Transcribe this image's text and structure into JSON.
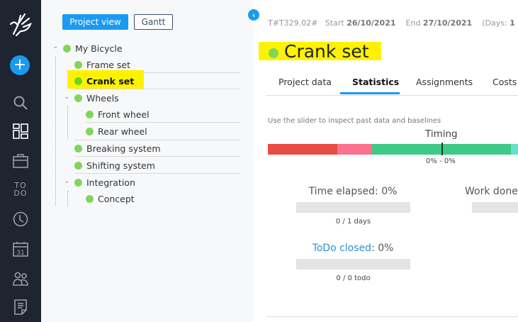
{
  "sidebar": {
    "items": [
      {
        "icon": "logo-hand-icon"
      },
      {
        "icon": "add-icon",
        "color": "#1a9af0"
      },
      {
        "icon": "search-icon"
      },
      {
        "icon": "dashboard-icon"
      },
      {
        "icon": "briefcase-icon"
      },
      {
        "icon": "todo-icon",
        "label_top": "TO",
        "label_bottom": "DO"
      },
      {
        "icon": "clock-icon"
      },
      {
        "icon": "calendar-icon",
        "label": "31"
      },
      {
        "icon": "people-icon"
      },
      {
        "icon": "document-icon"
      }
    ]
  },
  "left": {
    "project_view_label": "Project view",
    "gantt_label": "Gantt",
    "tree": [
      {
        "label": "My Bicycle",
        "level": 0,
        "expanded": true
      },
      {
        "label": "Frame set",
        "level": 1
      },
      {
        "label": "Crank set",
        "level": 1,
        "selected": true
      },
      {
        "label": "Wheels",
        "level": 1,
        "expanded": true
      },
      {
        "label": "Front wheel",
        "level": 2
      },
      {
        "label": "Rear wheel",
        "level": 2
      },
      {
        "label": "Breaking system",
        "level": 1
      },
      {
        "label": "Shifting system",
        "level": 1
      },
      {
        "label": "Integration",
        "level": 1,
        "expanded": true
      },
      {
        "label": "Concept",
        "level": 2
      }
    ]
  },
  "header": {
    "code": "T#T329.02#",
    "start_label": "Start",
    "start": "26/10/2021",
    "end_label": "End",
    "end": "27/10/2021",
    "days_prefix": "(Days:",
    "days": "1",
    "days_suffix": ")",
    "title": "Crank set",
    "status_color": "#7fd65a",
    "highlight": "#fff200"
  },
  "tabs": [
    {
      "label": "Project data"
    },
    {
      "label": "Statistics",
      "active": true
    },
    {
      "label": "Assignments"
    },
    {
      "label": "Costs"
    }
  ],
  "stats": {
    "hint": "Use the slider to inspect past data and baselines",
    "timing_title": "Timing",
    "timing_range": "0% - 0%",
    "timing_colors": [
      "#e84c44",
      "#fc7090",
      "#3fc987",
      "#64e2c8"
    ],
    "time_elapsed": {
      "label": "Time elapsed: 0%",
      "percent": 0,
      "sub": "0 / 1 days"
    },
    "work_done": {
      "label": "Work done"
    },
    "todo_closed": {
      "link": "ToDo closed",
      "suffix": ": 0%",
      "percent": 0,
      "sub": "0 / 0 todo"
    }
  }
}
